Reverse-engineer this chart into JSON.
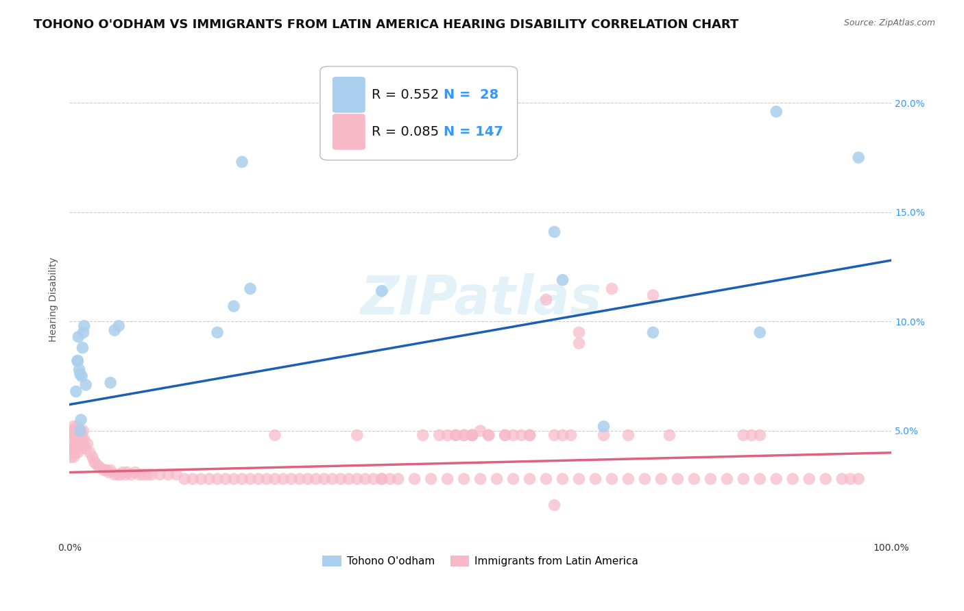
{
  "title": "TOHONO O'ODHAM VS IMMIGRANTS FROM LATIN AMERICA HEARING DISABILITY CORRELATION CHART",
  "source": "Source: ZipAtlas.com",
  "ylabel": "Hearing Disability",
  "series1_label": "Tohono O'odham",
  "series2_label": "Immigrants from Latin America",
  "series1_R": 0.552,
  "series1_N": 28,
  "series2_R": 0.085,
  "series2_N": 147,
  "series1_color": "#aacfee",
  "series1_line_color": "#1a5fb4",
  "series2_color": "#f7b8c8",
  "series2_line_color": "#e06080",
  "background_color": "#ffffff",
  "series1_x": [
    0.008,
    0.01,
    0.01,
    0.011,
    0.012,
    0.013,
    0.013,
    0.014,
    0.015,
    0.016,
    0.017,
    0.018,
    0.02,
    0.05,
    0.055,
    0.06,
    0.18,
    0.2,
    0.21,
    0.22,
    0.38,
    0.59,
    0.6,
    0.65,
    0.71,
    0.84,
    0.86,
    0.96
  ],
  "series1_y": [
    0.068,
    0.082,
    0.082,
    0.093,
    0.078,
    0.076,
    0.05,
    0.055,
    0.075,
    0.088,
    0.095,
    0.098,
    0.071,
    0.072,
    0.096,
    0.098,
    0.095,
    0.107,
    0.173,
    0.115,
    0.114,
    0.141,
    0.119,
    0.052,
    0.095,
    0.095,
    0.196,
    0.175
  ],
  "series2_x": [
    0.001,
    0.001,
    0.002,
    0.002,
    0.003,
    0.003,
    0.004,
    0.004,
    0.005,
    0.005,
    0.006,
    0.006,
    0.007,
    0.007,
    0.008,
    0.008,
    0.009,
    0.01,
    0.01,
    0.011,
    0.012,
    0.013,
    0.014,
    0.015,
    0.016,
    0.017,
    0.018,
    0.02,
    0.022,
    0.025,
    0.028,
    0.03,
    0.032,
    0.035,
    0.038,
    0.042,
    0.045,
    0.048,
    0.05,
    0.055,
    0.06,
    0.062,
    0.065,
    0.068,
    0.07,
    0.075,
    0.08,
    0.085,
    0.09,
    0.095,
    0.1,
    0.11,
    0.12,
    0.13,
    0.14,
    0.15,
    0.16,
    0.17,
    0.18,
    0.19,
    0.2,
    0.21,
    0.22,
    0.23,
    0.24,
    0.25,
    0.26,
    0.27,
    0.28,
    0.29,
    0.3,
    0.31,
    0.32,
    0.33,
    0.34,
    0.35,
    0.36,
    0.37,
    0.38,
    0.39,
    0.4,
    0.42,
    0.44,
    0.46,
    0.48,
    0.5,
    0.52,
    0.54,
    0.56,
    0.58,
    0.6,
    0.62,
    0.64,
    0.66,
    0.68,
    0.7,
    0.72,
    0.74,
    0.76,
    0.78,
    0.8,
    0.82,
    0.84,
    0.86,
    0.88,
    0.9,
    0.92,
    0.94,
    0.95,
    0.96,
    0.58,
    0.62,
    0.66,
    0.25,
    0.49,
    0.5,
    0.51,
    0.53,
    0.62,
    0.6,
    0.71,
    0.73,
    0.82,
    0.83,
    0.84,
    0.68,
    0.61,
    0.55,
    0.56,
    0.45,
    0.47,
    0.43,
    0.49,
    0.35,
    0.56,
    0.65,
    0.54,
    0.59,
    0.53,
    0.49,
    0.48,
    0.47,
    0.59,
    0.51,
    0.48,
    0.46,
    0.38
  ],
  "series2_y": [
    0.05,
    0.04,
    0.045,
    0.038,
    0.048,
    0.042,
    0.05,
    0.044,
    0.052,
    0.038,
    0.048,
    0.042,
    0.046,
    0.04,
    0.05,
    0.044,
    0.048,
    0.052,
    0.04,
    0.046,
    0.044,
    0.05,
    0.042,
    0.048,
    0.044,
    0.05,
    0.046,
    0.042,
    0.044,
    0.04,
    0.038,
    0.036,
    0.035,
    0.034,
    0.033,
    0.032,
    0.032,
    0.031,
    0.032,
    0.03,
    0.03,
    0.03,
    0.031,
    0.03,
    0.031,
    0.03,
    0.031,
    0.03,
    0.03,
    0.03,
    0.03,
    0.03,
    0.03,
    0.03,
    0.028,
    0.028,
    0.028,
    0.028,
    0.028,
    0.028,
    0.028,
    0.028,
    0.028,
    0.028,
    0.028,
    0.028,
    0.028,
    0.028,
    0.028,
    0.028,
    0.028,
    0.028,
    0.028,
    0.028,
    0.028,
    0.028,
    0.028,
    0.028,
    0.028,
    0.028,
    0.028,
    0.028,
    0.028,
    0.028,
    0.028,
    0.028,
    0.028,
    0.028,
    0.028,
    0.028,
    0.028,
    0.028,
    0.028,
    0.028,
    0.028,
    0.028,
    0.028,
    0.028,
    0.028,
    0.028,
    0.028,
    0.028,
    0.028,
    0.028,
    0.028,
    0.028,
    0.028,
    0.028,
    0.028,
    0.028,
    0.11,
    0.09,
    0.115,
    0.048,
    0.048,
    0.05,
    0.048,
    0.048,
    0.095,
    0.048,
    0.112,
    0.048,
    0.048,
    0.048,
    0.048,
    0.048,
    0.048,
    0.048,
    0.048,
    0.048,
    0.048,
    0.048,
    0.048,
    0.048,
    0.048,
    0.048,
    0.048,
    0.048,
    0.048,
    0.048,
    0.048,
    0.048,
    0.016,
    0.048,
    0.048,
    0.048,
    0.028
  ],
  "blue_line_x0": 0.0,
  "blue_line_y0": 0.062,
  "blue_line_x1": 1.0,
  "blue_line_y1": 0.128,
  "pink_line_x0": 0.0,
  "pink_line_y0": 0.031,
  "pink_line_x1": 1.0,
  "pink_line_y1": 0.04,
  "ylim": [
    0.0,
    0.22
  ],
  "xlim": [
    0.0,
    1.0
  ],
  "yticks": [
    0.0,
    0.05,
    0.1,
    0.15,
    0.2
  ],
  "ytick_labels_right": [
    "",
    "5.0%",
    "10.0%",
    "15.0%",
    "20.0%"
  ],
  "grid_color": "#cccccc",
  "title_fontsize": 13,
  "axis_label_fontsize": 10,
  "tick_fontsize": 10,
  "legend_fontsize": 14
}
